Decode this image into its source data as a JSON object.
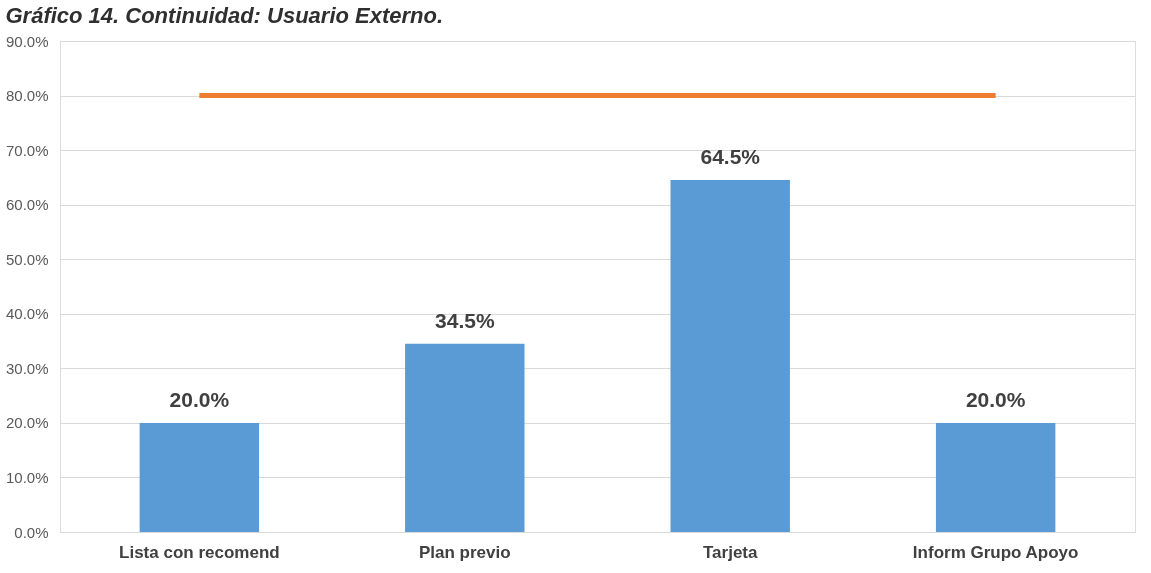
{
  "chart_data": {
    "type": "bar",
    "title": "Gráfico 14. Continuidad: Usuario Externo.",
    "categories": [
      "Lista con recomend",
      "Plan previo",
      "Tarjeta",
      "Inform Grupo Apoyo"
    ],
    "series": [
      {
        "color": "#5b9bd5",
        "values": [
          20.0,
          34.5,
          64.5,
          20.0
        ],
        "value_labels": [
          "20.0%",
          "34.5%",
          "64.5%",
          "20.0%"
        ]
      },
      {
        "type": "line",
        "color": "#ed7d31",
        "values": [
          80,
          80,
          80,
          80
        ],
        "marker": "none",
        "line_style": "solid"
      }
    ],
    "ylim": [
      0,
      90
    ],
    "yticks": [
      {
        "value": 0,
        "label": "0.0%"
      },
      {
        "value": 10,
        "label": "10.0%"
      },
      {
        "value": 20,
        "label": "20.0%"
      },
      {
        "value": 30,
        "label": "30.0%"
      },
      {
        "value": 40,
        "label": "40.0%"
      },
      {
        "value": 50,
        "label": "50.0%"
      },
      {
        "value": 60,
        "label": "60.0%"
      },
      {
        "value": 70,
        "label": "70.0%"
      },
      {
        "value": 80,
        "label": "80.0%"
      },
      {
        "value": 90,
        "label": "90.0%"
      }
    ],
    "grid": "y"
  }
}
